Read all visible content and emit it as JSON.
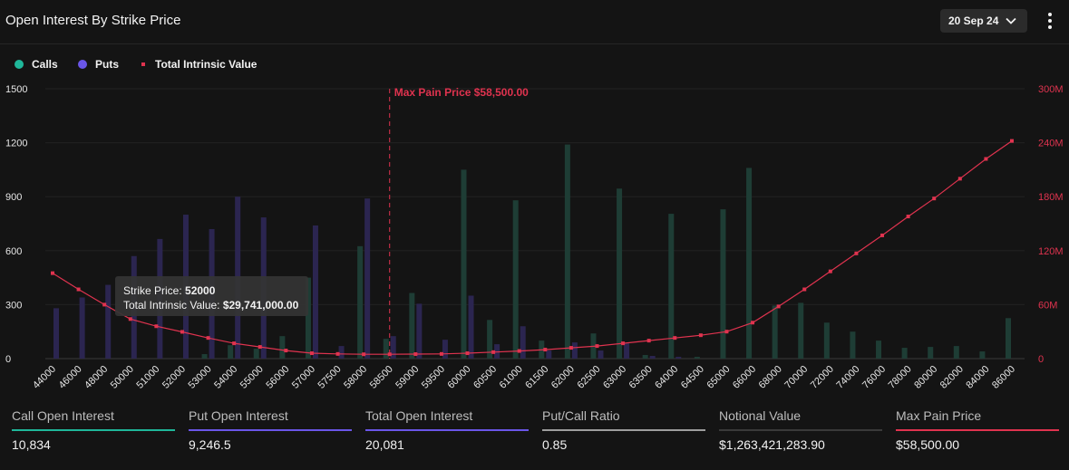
{
  "header": {
    "title": "Open Interest By Strike Price",
    "date_label": "20 Sep 24"
  },
  "legend": {
    "calls": "Calls",
    "puts": "Puts",
    "intrinsic": "Total Intrinsic Value"
  },
  "colors": {
    "calls": "#1e3d35",
    "puts": "#2b2550",
    "intrinsic": "#e0334f",
    "calls_accent": "#1fb79a",
    "puts_accent": "#6a56e8"
  },
  "tooltip": {
    "strike_label": "Strike Price: ",
    "strike_value": "52000",
    "value_label": "Total Intrinsic Value: ",
    "value_value": "$29,741,000.00"
  },
  "chart_data": {
    "type": "bar",
    "categories": [
      "44000",
      "46000",
      "48000",
      "50000",
      "51000",
      "52000",
      "53000",
      "54000",
      "55000",
      "56000",
      "57000",
      "57500",
      "58000",
      "58500",
      "59000",
      "59500",
      "60000",
      "60500",
      "61000",
      "61500",
      "62000",
      "62500",
      "63000",
      "63500",
      "64000",
      "64500",
      "65000",
      "66000",
      "68000",
      "70000",
      "72000",
      "74000",
      "76000",
      "78000",
      "80000",
      "82000",
      "84000",
      "86000"
    ],
    "series": [
      {
        "name": "Calls",
        "values": [
          0,
          0,
          0,
          0,
          0,
          0,
          25,
          75,
          55,
          125,
          450,
          0,
          625,
          110,
          365,
          0,
          1050,
          215,
          880,
          100,
          1190,
          140,
          945,
          20,
          805,
          10,
          830,
          1060,
          295,
          310,
          200,
          150,
          100,
          60,
          65,
          70,
          40,
          225
        ]
      },
      {
        "name": "Puts",
        "values": [
          280,
          340,
          410,
          570,
          665,
          800,
          720,
          900,
          785,
          0,
          740,
          70,
          890,
          125,
          305,
          105,
          350,
          80,
          180,
          45,
          90,
          45,
          85,
          15,
          10,
          0,
          0,
          0,
          0,
          0,
          0,
          0,
          0,
          0,
          0,
          0,
          0,
          0
        ]
      },
      {
        "name": "Total Intrinsic Value",
        "axis": "right",
        "values": [
          95000000,
          77000000,
          60000000,
          44000000,
          36000000,
          29741000,
          23000000,
          17000000,
          13000000,
          9000000,
          6000000,
          5200000,
          4800000,
          4800000,
          5000000,
          5200000,
          6000000,
          7200000,
          8500000,
          10000000,
          12000000,
          14000000,
          17000000,
          20000000,
          23000000,
          26000000,
          30000000,
          40000000,
          58000000,
          77000000,
          97000000,
          117000000,
          137000000,
          158000000,
          178000000,
          200000000,
          222000000,
          242000000
        ]
      }
    ],
    "left_axis": {
      "min": 0,
      "max": 1500,
      "ticks": [
        "0",
        "300",
        "600",
        "900",
        "1200",
        "1500"
      ]
    },
    "right_axis": {
      "min": 0,
      "max": 300000000,
      "ticks": [
        "0",
        "60M",
        "120M",
        "180M",
        "240M",
        "300M"
      ]
    },
    "max_pain": {
      "label": "Max Pain Price $58,500.00",
      "strike": "58500"
    }
  },
  "stats": [
    {
      "label": "Call Open Interest",
      "value": "10,834",
      "color": "#1fb79a"
    },
    {
      "label": "Put Open Interest",
      "value": "9,246.5",
      "color": "#6a56e8"
    },
    {
      "label": "Total Open Interest",
      "value": "20,081",
      "color": "#6a56e8"
    },
    {
      "label": "Put/Call Ratio",
      "value": "0.85",
      "color": "#9e9e9e"
    },
    {
      "label": "Notional Value",
      "value": "$1,263,421,283.90",
      "color": "#3a3a3a"
    },
    {
      "label": "Max Pain Price",
      "value": "$58,500.00",
      "color": "#e0334f"
    }
  ]
}
